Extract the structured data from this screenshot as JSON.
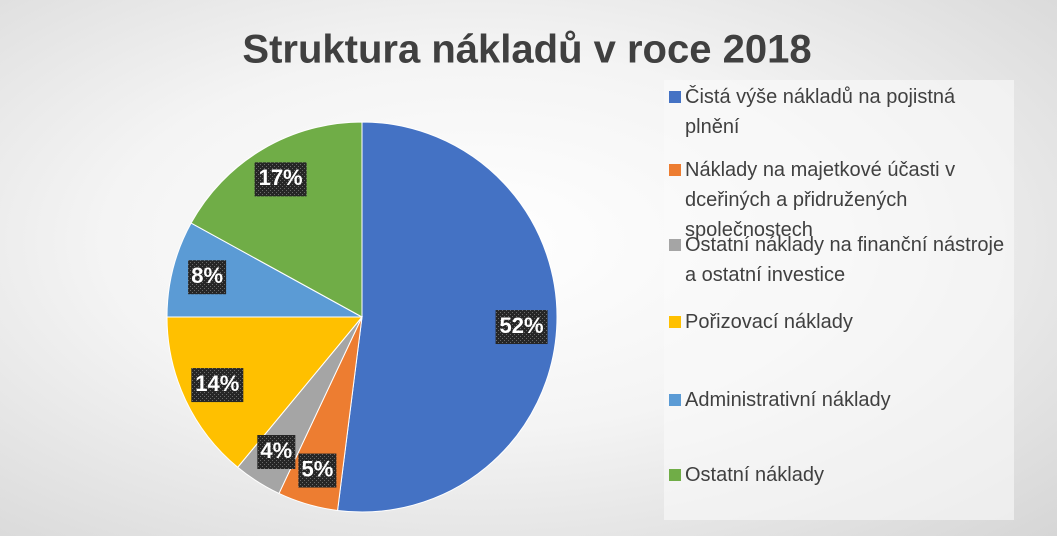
{
  "chart_data": {
    "type": "pie",
    "title": "Struktura nákladů v roce 2018",
    "categories": [
      "Čistá výše nákladů na pojistná plnění",
      "Náklady na majetkové účasti v dceřiných a přidružených společnostech",
      "Ostatní náklady na finanční nástroje a ostatní investice",
      "Pořizovací náklady",
      "Administrativní náklady",
      "Ostatní náklady"
    ],
    "values": [
      52,
      5,
      4,
      14,
      8,
      17
    ],
    "value_labels": [
      "52%",
      "5%",
      "4%",
      "14%",
      "8%",
      "17%"
    ],
    "colors": [
      "#4472c4",
      "#ed7d31",
      "#a5a5a5",
      "#ffc000",
      "#5b9bd5",
      "#70ad47"
    ],
    "legend": "right"
  }
}
